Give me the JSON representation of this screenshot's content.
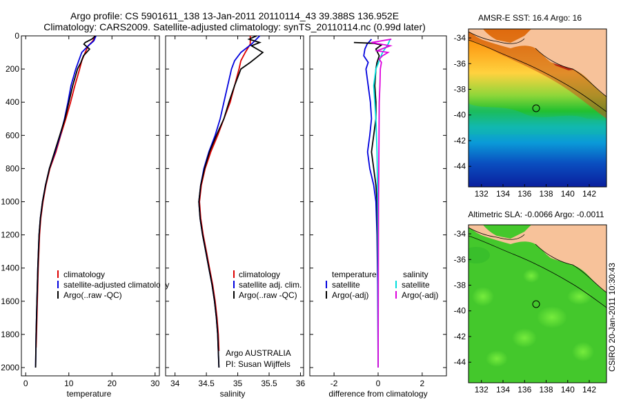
{
  "title": {
    "line1": "Argo profile: CS 5901611_138 13-Jan-2011 20110114_43 39.388S 136.952E",
    "line2": "Climatology: CARS2009. Satellite-adjusted climatology: synTS_20110114.nc (0.99d later)"
  },
  "side_label": "CSIRO 20-Jan-2011 10:30:43",
  "map_sst": {
    "title": "AMSR-E SST: 16.4 Argo: 16",
    "colors": [
      "#fb8500",
      "#ffd23f",
      "#22c02f",
      "#0a9ad8",
      "#0a1f9e"
    ]
  },
  "map_sla": {
    "title": "Altimetric SLA: -0.0066 Argo: -0.0011",
    "colors": [
      "#44c82c",
      "#6fe83a",
      "#2db52a"
    ]
  },
  "chart_data": [
    {
      "type": "line",
      "xlabel": "temperature",
      "xlim": [
        -1,
        31
      ],
      "ylim": [
        2050,
        0
      ],
      "xticks": [
        "0",
        "10",
        "20",
        "30"
      ],
      "yticks": [
        "0",
        "200",
        "400",
        "600",
        "800",
        "1000",
        "1200",
        "1400",
        "1600",
        "1800",
        "2000"
      ],
      "legend_position": "center-right",
      "series": [
        {
          "name": "climatology",
          "color": "#dd0000",
          "points": [
            [
              16,
              0
            ],
            [
              15.6,
              30
            ],
            [
              14.5,
              60
            ],
            [
              13.8,
              100
            ],
            [
              13,
              150
            ],
            [
              12.5,
              200
            ],
            [
              11.4,
              300
            ],
            [
              10.4,
              400
            ],
            [
              9.3,
              500
            ],
            [
              8.1,
              600
            ],
            [
              7,
              700
            ],
            [
              5.6,
              800
            ],
            [
              4.7,
              900
            ],
            [
              4,
              1000
            ],
            [
              3.5,
              1100
            ],
            [
              3.2,
              1200
            ],
            [
              2.9,
              1400
            ],
            [
              2.7,
              1600
            ],
            [
              2.5,
              1800
            ],
            [
              2.4,
              1880
            ]
          ]
        },
        {
          "name": "satellite-adjusted climatology",
          "color": "#0000dd",
          "points": [
            [
              16.3,
              0
            ],
            [
              15.8,
              30
            ],
            [
              14.5,
              60
            ],
            [
              13,
              100
            ],
            [
              12.3,
              150
            ],
            [
              11.6,
              200
            ],
            [
              10.5,
              300
            ],
            [
              9.8,
              400
            ],
            [
              9,
              500
            ],
            [
              8,
              600
            ],
            [
              6.8,
              700
            ],
            [
              5.5,
              800
            ],
            [
              4.6,
              900
            ],
            [
              3.9,
              1000
            ],
            [
              3.4,
              1100
            ],
            [
              3.1,
              1200
            ],
            [
              2.8,
              1400
            ],
            [
              2.6,
              1600
            ],
            [
              2.4,
              1800
            ],
            [
              2.3,
              2000
            ]
          ]
        },
        {
          "name": "Argo(..raw -QC)",
          "color": "#000000",
          "points": [
            [
              16.2,
              0
            ],
            [
              15.3,
              20
            ],
            [
              13.8,
              40
            ],
            [
              13.5,
              50
            ],
            [
              14.8,
              80
            ],
            [
              13.4,
              120
            ],
            [
              12.8,
              160
            ],
            [
              12,
              200
            ],
            [
              10.9,
              300
            ],
            [
              10,
              400
            ],
            [
              9.1,
              500
            ],
            [
              7.9,
              600
            ],
            [
              6.7,
              700
            ],
            [
              5.5,
              800
            ],
            [
              4.6,
              900
            ],
            [
              3.9,
              1000
            ],
            [
              3.4,
              1100
            ],
            [
              3.1,
              1200
            ],
            [
              2.8,
              1400
            ],
            [
              2.6,
              1600
            ],
            [
              2.4,
              1800
            ],
            [
              2.3,
              2000
            ]
          ]
        }
      ]
    },
    {
      "type": "line",
      "xlabel": "salinity",
      "xlim": [
        33.85,
        36.05
      ],
      "ylim": [
        2050,
        0
      ],
      "xticks": [
        "34",
        "34.5",
        "35",
        "35.5",
        "36"
      ],
      "legend_position": "center-right",
      "annotation": [
        "Argo AUSTRALIA",
        "PI: Susan Wijffels"
      ],
      "series": [
        {
          "name": "climatology",
          "color": "#dd0000",
          "points": [
            [
              35.2,
              0
            ],
            [
              35.2,
              50
            ],
            [
              35.12,
              100
            ],
            [
              35.05,
              150
            ],
            [
              35.02,
              200
            ],
            [
              34.95,
              300
            ],
            [
              34.88,
              400
            ],
            [
              34.78,
              500
            ],
            [
              34.68,
              600
            ],
            [
              34.57,
              700
            ],
            [
              34.48,
              800
            ],
            [
              34.42,
              900
            ],
            [
              34.39,
              1000
            ],
            [
              34.41,
              1100
            ],
            [
              34.45,
              1200
            ],
            [
              34.5,
              1300
            ],
            [
              34.55,
              1400
            ],
            [
              34.6,
              1500
            ],
            [
              34.64,
              1600
            ],
            [
              34.67,
              1700
            ],
            [
              34.69,
              1800
            ],
            [
              34.7,
              1900
            ]
          ]
        },
        {
          "name": "satellite adj. clim.",
          "color": "#0000dd",
          "points": [
            [
              35.35,
              0
            ],
            [
              35.22,
              50
            ],
            [
              35.05,
              100
            ],
            [
              34.95,
              150
            ],
            [
              34.9,
              200
            ],
            [
              34.84,
              300
            ],
            [
              34.78,
              400
            ],
            [
              34.72,
              500
            ],
            [
              34.64,
              600
            ],
            [
              34.54,
              700
            ],
            [
              34.46,
              800
            ],
            [
              34.41,
              900
            ],
            [
              34.38,
              1000
            ],
            [
              34.4,
              1100
            ],
            [
              34.44,
              1200
            ],
            [
              34.49,
              1300
            ],
            [
              34.54,
              1400
            ],
            [
              34.59,
              1500
            ],
            [
              34.63,
              1600
            ],
            [
              34.66,
              1700
            ],
            [
              34.68,
              1800
            ],
            [
              34.69,
              1900
            ],
            [
              34.7,
              2000
            ]
          ]
        },
        {
          "name": "Argo(..raw -QC)",
          "color": "#000000",
          "points": [
            [
              35.3,
              0
            ],
            [
              35.18,
              20
            ],
            [
              35.35,
              40
            ],
            [
              35.22,
              60
            ],
            [
              35.4,
              100
            ],
            [
              35.3,
              130
            ],
            [
              35.2,
              160
            ],
            [
              35.05,
              200
            ],
            [
              34.95,
              300
            ],
            [
              34.86,
              400
            ],
            [
              34.78,
              500
            ],
            [
              34.66,
              600
            ],
            [
              34.55,
              700
            ],
            [
              34.47,
              800
            ],
            [
              34.41,
              900
            ],
            [
              34.38,
              1000
            ],
            [
              34.4,
              1100
            ],
            [
              34.44,
              1200
            ],
            [
              34.49,
              1300
            ],
            [
              34.54,
              1400
            ],
            [
              34.59,
              1500
            ],
            [
              34.63,
              1600
            ],
            [
              34.66,
              1700
            ],
            [
              34.68,
              1800
            ],
            [
              34.69,
              1900
            ],
            [
              34.7,
              2000
            ]
          ]
        }
      ]
    },
    {
      "type": "line",
      "xlabel": "difference from climatology",
      "xlim": [
        -3.1,
        3.1
      ],
      "ylim": [
        2050,
        0
      ],
      "xticks": [
        "-2",
        "0",
        "2"
      ],
      "legend_position": "center",
      "legend_headers": [
        "temperature",
        "salinity"
      ],
      "series": [
        {
          "name": "satellite",
          "group": "temperature",
          "color": "#0000dd",
          "points": [
            [
              -0.3,
              20
            ],
            [
              -0.5,
              50
            ],
            [
              -0.6,
              80
            ],
            [
              -0.65,
              120
            ],
            [
              -0.45,
              160
            ],
            [
              -0.55,
              200
            ],
            [
              -0.45,
              300
            ],
            [
              -0.35,
              400
            ],
            [
              -0.3,
              500
            ],
            [
              -0.38,
              600
            ],
            [
              -0.48,
              700
            ],
            [
              -0.38,
              800
            ],
            [
              -0.2,
              900
            ],
            [
              -0.1,
              1000
            ],
            [
              -0.05,
              1200
            ],
            [
              -0.02,
              1500
            ],
            [
              0,
              2000
            ]
          ]
        },
        {
          "name": "Argo(-adj)",
          "group": "temperature",
          "color": "#000000",
          "points": [
            [
              -1.1,
              40
            ],
            [
              -0.2,
              45
            ],
            [
              0.15,
              55
            ],
            [
              -0.1,
              80
            ],
            [
              0.05,
              120
            ],
            [
              -0.05,
              160
            ],
            [
              -0.1,
              200
            ],
            [
              -0.15,
              300
            ],
            [
              -0.1,
              400
            ],
            [
              -0.1,
              500
            ],
            [
              -0.2,
              600
            ],
            [
              -0.3,
              700
            ],
            [
              -0.2,
              800
            ],
            [
              -0.1,
              900
            ],
            [
              -0.05,
              1000
            ],
            [
              -0.03,
              1200
            ],
            [
              0,
              1500
            ],
            [
              0,
              2000
            ]
          ]
        },
        {
          "name": "satellite",
          "group": "salinity",
          "color": "#00dddd",
          "points": [
            [
              0.55,
              20
            ],
            [
              0.45,
              50
            ],
            [
              0.2,
              100
            ],
            [
              0.05,
              150
            ],
            [
              -0.1,
              200
            ],
            [
              -0.2,
              300
            ],
            [
              -0.15,
              400
            ],
            [
              -0.1,
              500
            ],
            [
              -0.05,
              700
            ],
            [
              -0.02,
              1000
            ],
            [
              0,
              1500
            ],
            [
              0,
              2000
            ]
          ]
        },
        {
          "name": "Argo(-adj)",
          "group": "salinity",
          "color": "#dd00dd",
          "points": [
            [
              0.6,
              20
            ],
            [
              -0.3,
              40
            ],
            [
              0.55,
              60
            ],
            [
              -0.05,
              90
            ],
            [
              0.45,
              100
            ],
            [
              0.2,
              120
            ],
            [
              0.05,
              140
            ],
            [
              0.15,
              160
            ],
            [
              0.1,
              200
            ],
            [
              0.08,
              300
            ],
            [
              0.05,
              400
            ],
            [
              0.04,
              600
            ],
            [
              0.03,
              800
            ],
            [
              0.02,
              1000
            ],
            [
              0.01,
              1500
            ],
            [
              0,
              2000
            ]
          ]
        }
      ]
    },
    {
      "type": "heatmap",
      "title": "AMSR-E SST: 16.4 Argo: 16",
      "xlim": [
        130.8,
        143.6
      ],
      "ylim": [
        -45.6,
        -33.3
      ],
      "xticks": [
        "132",
        "134",
        "136",
        "138",
        "140",
        "142"
      ],
      "yticks": [
        "-34",
        "-36",
        "-38",
        "-40",
        "-42",
        "-44"
      ],
      "argo_position": [
        136.95,
        -39.39
      ]
    },
    {
      "type": "heatmap",
      "title": "Altimetric SLA: -0.0066 Argo: -0.0011",
      "xlim": [
        130.8,
        143.6
      ],
      "ylim": [
        -45.6,
        -33.3
      ],
      "xticks": [
        "132",
        "134",
        "136",
        "138",
        "140",
        "142"
      ],
      "yticks": [
        "-34",
        "-36",
        "-38",
        "-40",
        "-42",
        "-44"
      ],
      "argo_position": [
        136.95,
        -39.39
      ]
    }
  ]
}
